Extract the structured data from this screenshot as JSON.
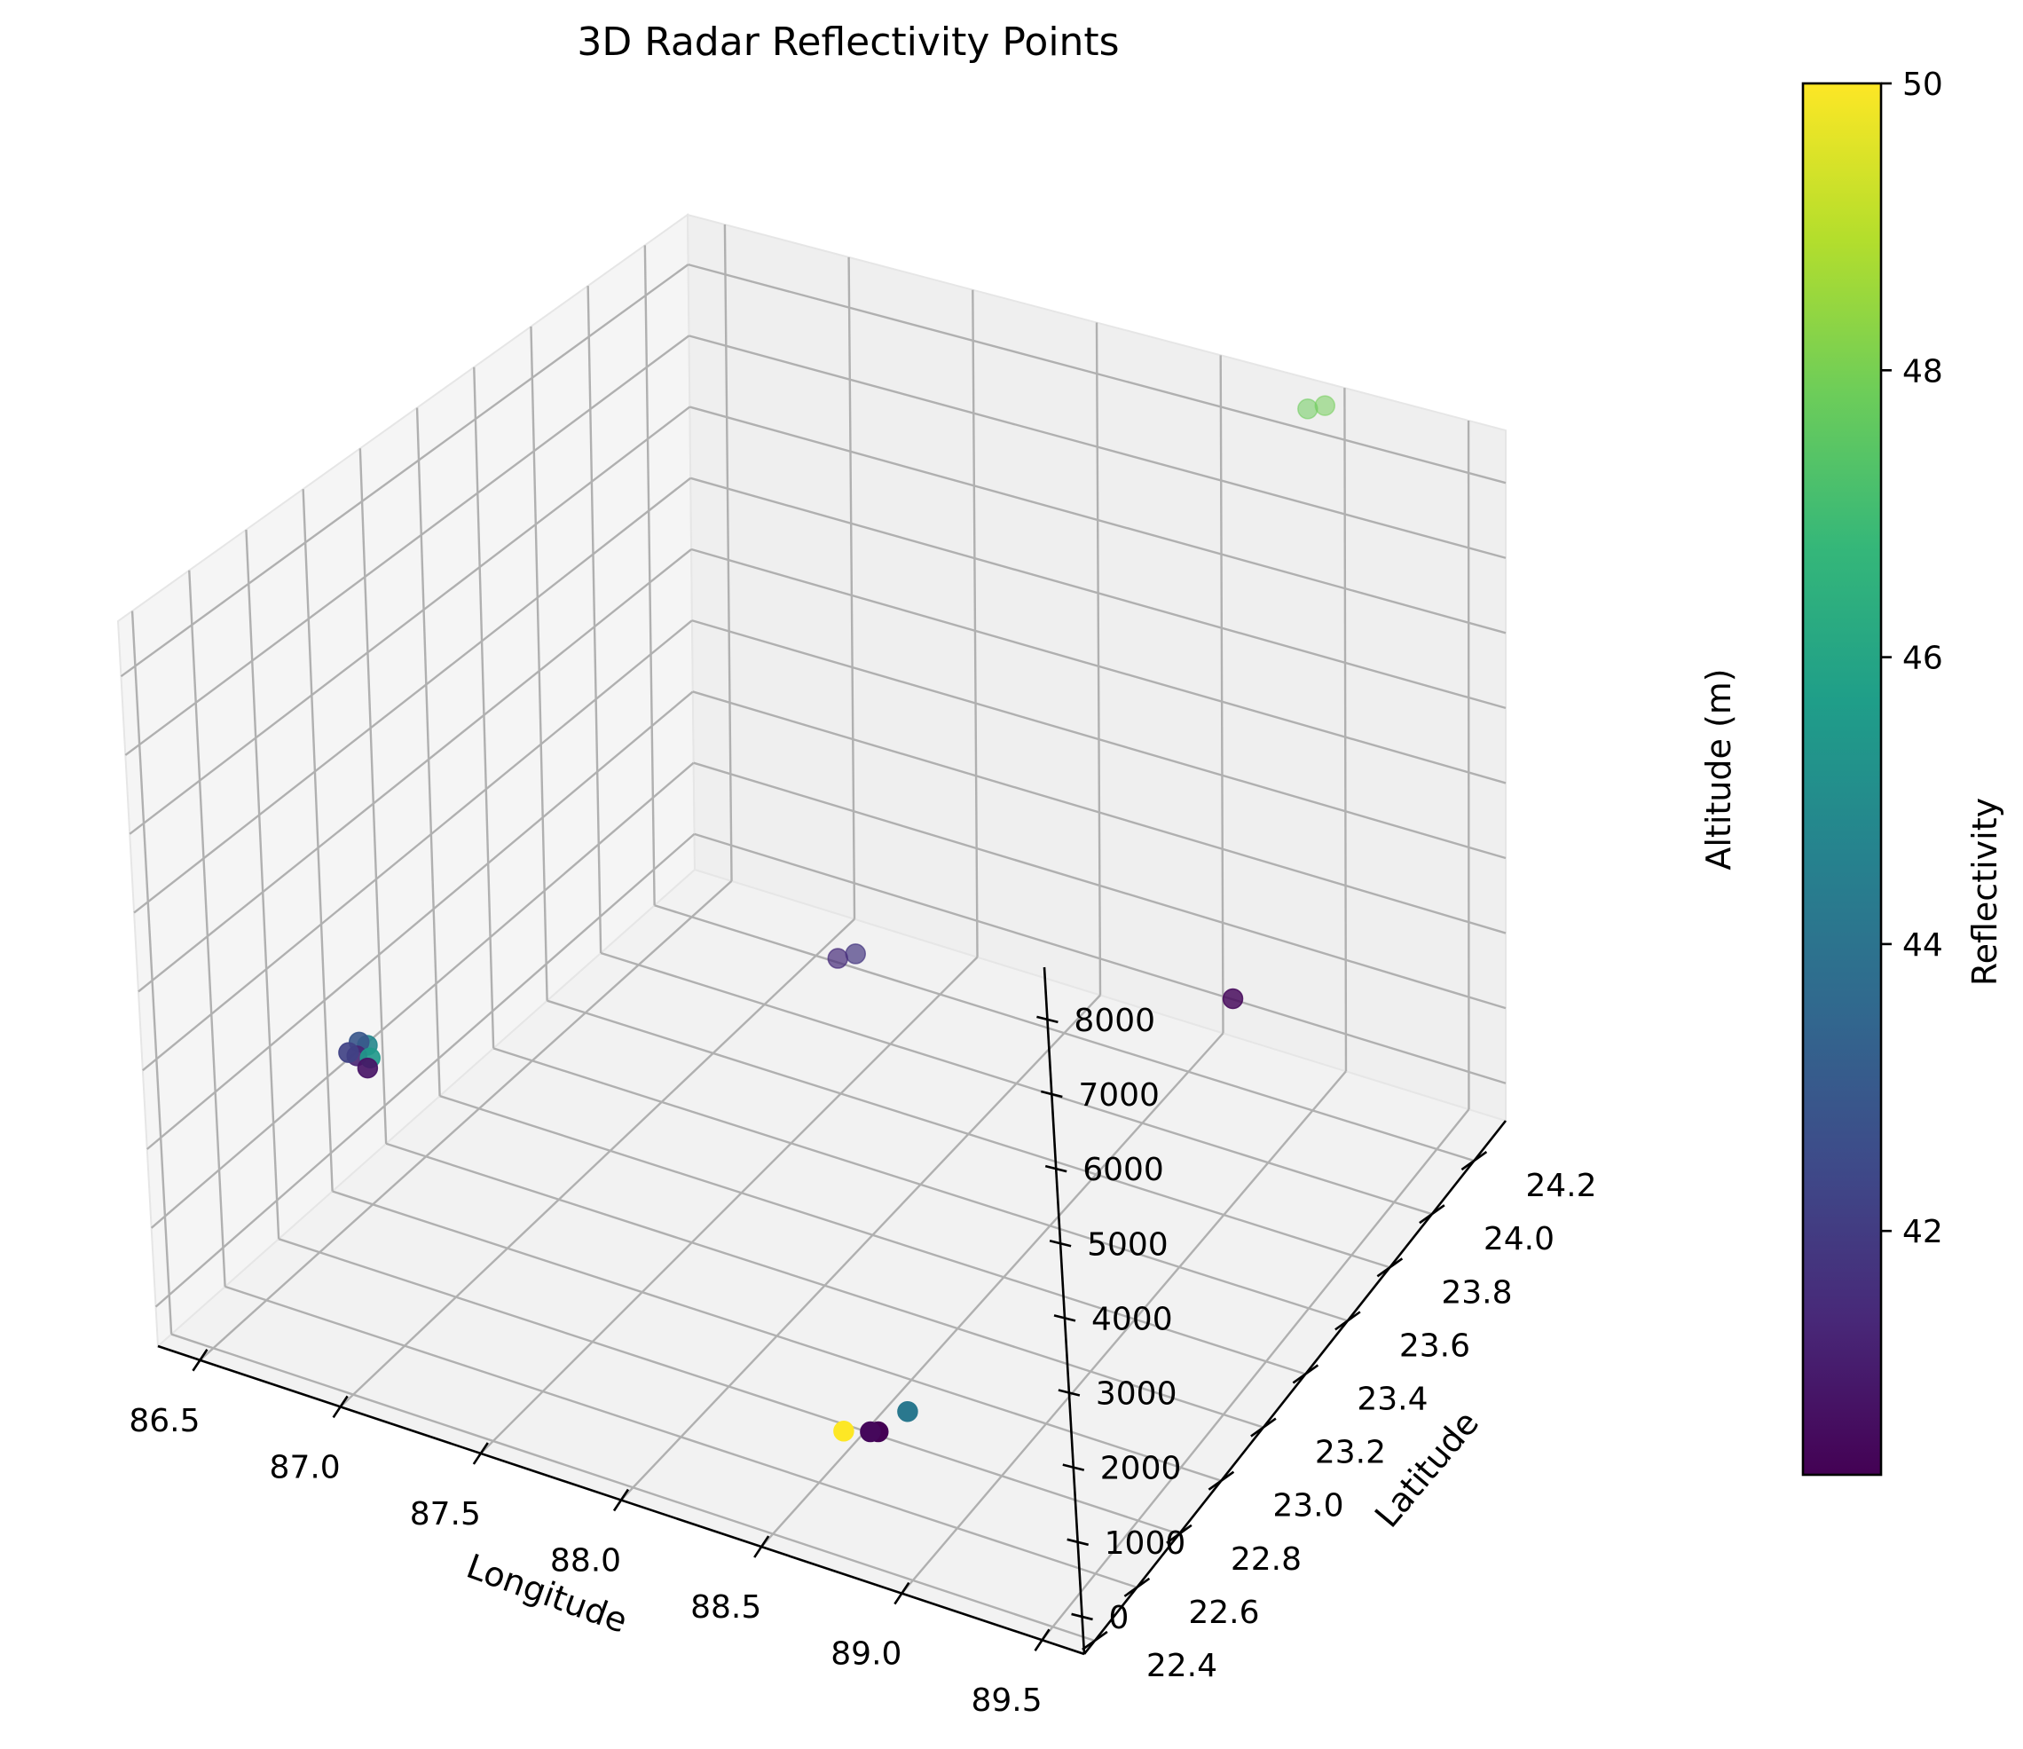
{
  "chart_data": {
    "type": "scatter",
    "projection": "3d",
    "title": "3D Radar Reflectivity Points",
    "xlabel": "Longitude",
    "ylabel": "Latitude",
    "zlabel": "Altitude (m)",
    "xticks": [
      "86.5",
      "87.0",
      "87.5",
      "88.0",
      "88.5",
      "89.0",
      "89.5"
    ],
    "yticks": [
      "22.4",
      "22.6",
      "22.8",
      "23.0",
      "23.2",
      "23.4",
      "23.6",
      "23.8",
      "24.0",
      "24.2"
    ],
    "zticks": [
      "0",
      "1000",
      "2000",
      "3000",
      "4000",
      "5000",
      "6000",
      "7000",
      "8000"
    ],
    "grid": true,
    "colormap": "viridis",
    "colorbar": {
      "label": "Reflectivity",
      "ticks": [
        "42",
        "44",
        "46",
        "48",
        "50"
      ],
      "range": [
        40.3,
        50
      ]
    },
    "points": [
      {
        "lon": 86.38,
        "lat": 23.05,
        "alt": 1200,
        "reflectivity": 42.2
      },
      {
        "lon": 86.4,
        "lat": 23.06,
        "alt": 1150,
        "reflectivity": 41.3
      },
      {
        "lon": 86.42,
        "lat": 23.08,
        "alt": 1250,
        "reflectivity": 44.8
      },
      {
        "lon": 86.45,
        "lat": 23.06,
        "alt": 1180,
        "reflectivity": 45.5
      },
      {
        "lon": 86.46,
        "lat": 23.04,
        "alt": 1120,
        "reflectivity": 40.8
      },
      {
        "lon": 86.4,
        "lat": 23.07,
        "alt": 1300,
        "reflectivity": 42.9
      },
      {
        "lon": 87.55,
        "lat": 23.75,
        "alt": 1550,
        "reflectivity": 41.5
      },
      {
        "lon": 87.6,
        "lat": 23.77,
        "alt": 1600,
        "reflectivity": 41.8
      },
      {
        "lon": 88.6,
        "lat": 22.6,
        "alt": 300,
        "reflectivity": 50.0
      },
      {
        "lon": 88.68,
        "lat": 22.62,
        "alt": 320,
        "reflectivity": 40.5
      },
      {
        "lon": 88.7,
        "lat": 22.63,
        "alt": 310,
        "reflectivity": 40.3
      },
      {
        "lon": 88.75,
        "lat": 22.7,
        "alt": 400,
        "reflectivity": 44.2
      },
      {
        "lon": 88.9,
        "lat": 24.3,
        "alt": 8500,
        "reflectivity": 47.8
      },
      {
        "lon": 88.95,
        "lat": 24.32,
        "alt": 8520,
        "reflectivity": 47.9
      },
      {
        "lon": 89.5,
        "lat": 23.3,
        "alt": 4700,
        "reflectivity": 40.5
      }
    ]
  }
}
